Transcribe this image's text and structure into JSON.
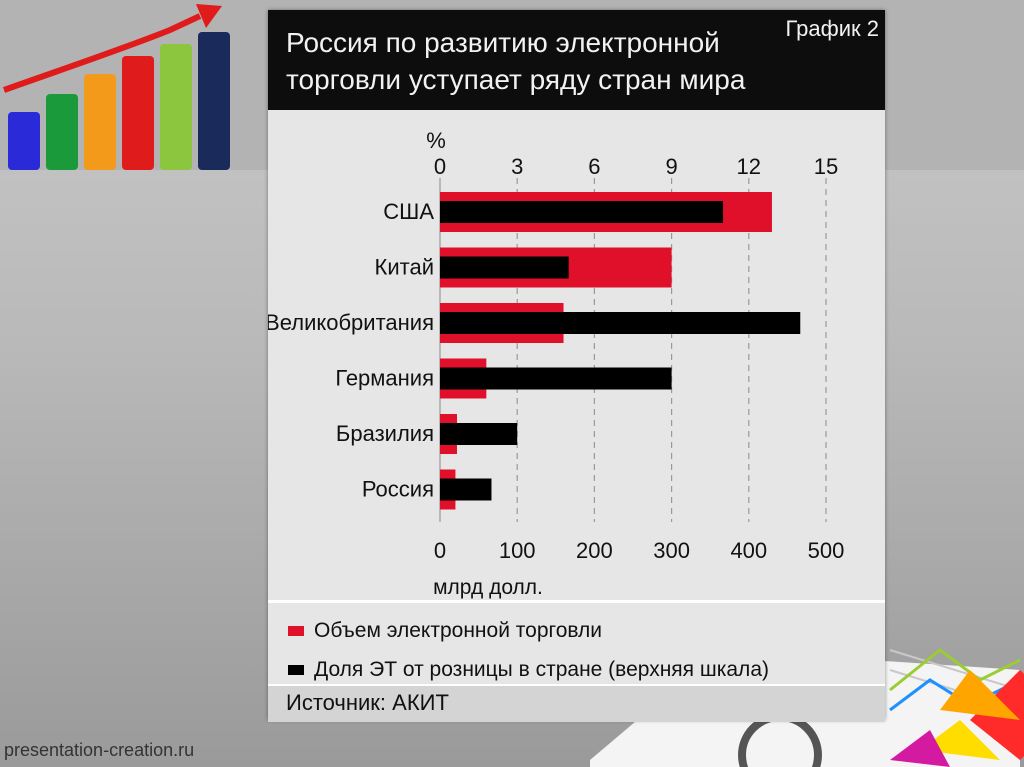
{
  "header": {
    "title": "Россия по развитию электронной торговли уступает ряду стран мира",
    "label": "График 2"
  },
  "footer": {
    "site": "presentation-creation.ru"
  },
  "legend": {
    "items": [
      {
        "label": "Объем электронной торговли",
        "color": "#e0102a"
      },
      {
        "label": "Доля ЭТ от розницы в стране (верхняя шкала)",
        "color": "#000000"
      }
    ]
  },
  "source": "Источник: АКИТ",
  "chart_data": {
    "type": "bar",
    "orientation": "horizontal",
    "categories": [
      "США",
      "Китай",
      "Великобритания",
      "Германия",
      "Бразилия",
      "Россия"
    ],
    "series": [
      {
        "name": "Объем электронной торговли",
        "axis": "bottom",
        "color": "#e0102a",
        "values": [
          430,
          300,
          160,
          60,
          22,
          20
        ]
      },
      {
        "name": "Доля ЭТ от розницы в стране (верхняя шкала)",
        "axis": "top",
        "color": "#000000",
        "values": [
          11,
          5,
          14,
          9,
          3,
          2
        ]
      }
    ],
    "top_axis": {
      "label": "%",
      "ticks": [
        0,
        3,
        6,
        9,
        12,
        15
      ],
      "range": [
        0,
        15
      ]
    },
    "bottom_axis": {
      "label": "млрд долл.",
      "ticks": [
        0,
        100,
        200,
        300,
        400,
        500
      ],
      "range": [
        0,
        500
      ]
    },
    "grid": true
  },
  "colors": {
    "accent": "#e0102a",
    "header_bg": "#0d0d0d",
    "panel_bg": "#e6e6e6"
  }
}
